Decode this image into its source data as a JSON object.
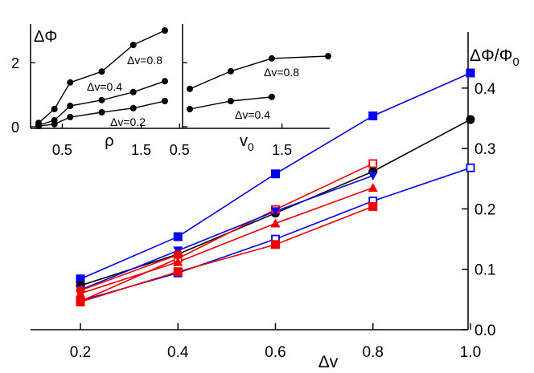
{
  "colors": {
    "blue": "#0000ee",
    "red": "#ee0000",
    "black": "#000000"
  },
  "chart_data": [
    {
      "type": "line",
      "xlabel": "Δv",
      "ylabel": "ΔΦ/Φ0",
      "xlim": [
        0.1,
        1.0
      ],
      "ylim": [
        0.0,
        0.44
      ],
      "xticks": [
        "0.2",
        "0.4",
        "0.6",
        "0.8",
        "1.0"
      ],
      "yticks": [
        "0.0",
        "0.1",
        "0.2",
        "0.3",
        "0.4"
      ],
      "y_axis_side": "right",
      "series": [
        {
          "color": "blue",
          "marker": "square-filled",
          "x": [
            0.2,
            0.4,
            0.6,
            0.8,
            1.0
          ],
          "y": [
            0.084,
            0.154,
            0.258,
            0.354,
            0.425
          ]
        },
        {
          "color": "black",
          "marker": "circle-filled",
          "x": [
            0.2,
            0.4,
            0.6,
            0.8,
            1.0
          ],
          "y": [
            0.073,
            0.125,
            0.193,
            0.262,
            0.348
          ]
        },
        {
          "color": "blue",
          "marker": "square-open",
          "x": [
            0.2,
            0.4,
            0.6,
            0.8,
            1.0
          ],
          "y": [
            0.048,
            0.094,
            0.15,
            0.213,
            0.268
          ]
        },
        {
          "color": "red",
          "marker": "square-open",
          "x": [
            0.2,
            0.4,
            0.6,
            0.8
          ],
          "y": [
            0.047,
            0.118,
            0.199,
            0.275
          ]
        },
        {
          "color": "red",
          "marker": "triangle-filled",
          "x": [
            0.2,
            0.4,
            0.6,
            0.8
          ],
          "y": [
            0.06,
            0.112,
            0.176,
            0.235
          ]
        },
        {
          "color": "red",
          "marker": "square-filled",
          "x": [
            0.2,
            0.4,
            0.6,
            0.8
          ],
          "y": [
            0.046,
            0.096,
            0.141,
            0.204
          ]
        },
        {
          "color": "blue",
          "marker": "triangle-down-filled",
          "x": [
            0.2,
            0.4,
            0.6,
            0.8
          ],
          "y": [
            0.066,
            0.131,
            0.196,
            0.255
          ]
        },
        {
          "color": "red",
          "marker": "circle-filled",
          "x": [
            0.2,
            0.4
          ],
          "y": [
            0.065,
            0.124
          ]
        }
      ]
    },
    {
      "type": "line",
      "xlabel": "ρ",
      "ylabel": "ΔΦ",
      "xlim": [
        0.1,
        2.2
      ],
      "ylim": [
        0.0,
        3.1
      ],
      "xticks": [
        "0.5",
        "1.5"
      ],
      "yticks": [
        "0",
        "2"
      ],
      "series": [
        {
          "name": "Δv=0.8",
          "x": [
            0.2,
            0.4,
            0.6,
            1.0,
            1.4,
            1.8
          ],
          "y": [
            0.12,
            0.55,
            1.38,
            1.72,
            2.55,
            3.0
          ]
        },
        {
          "name": "Δv=0.4",
          "x": [
            0.2,
            0.4,
            0.6,
            1.0,
            1.4,
            1.8
          ],
          "y": [
            0.05,
            0.2,
            0.65,
            0.83,
            1.08,
            1.42
          ]
        },
        {
          "name": "Δv=0.2",
          "x": [
            0.2,
            0.4,
            0.6,
            1.0,
            1.4,
            1.8
          ],
          "y": [
            0.02,
            0.08,
            0.3,
            0.45,
            0.58,
            0.8
          ]
        }
      ]
    },
    {
      "type": "line",
      "xlabel": "v0",
      "xlim": [
        0.4,
        2.0
      ],
      "ylim": [
        0.0,
        3.1
      ],
      "xticks": [
        "0.5",
        "1.5"
      ],
      "series": [
        {
          "name": "Δv=0.8",
          "x": [
            0.6,
            1.0,
            1.4,
            1.95
          ],
          "y": [
            1.18,
            1.73,
            2.13,
            2.2
          ]
        },
        {
          "name": "Δv=0.4",
          "x": [
            0.6,
            1.0,
            1.4
          ],
          "y": [
            0.55,
            0.8,
            0.93
          ]
        }
      ]
    }
  ]
}
